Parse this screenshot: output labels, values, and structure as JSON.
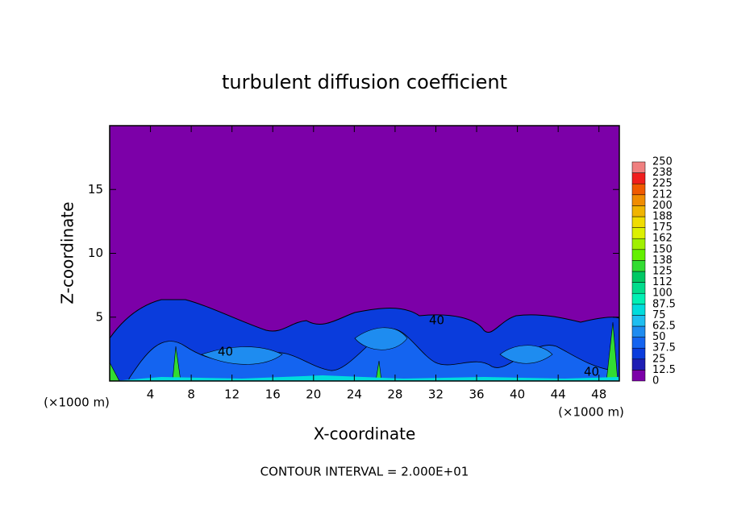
{
  "chart_data": {
    "type": "contour",
    "title": "turbulent diffusion coefficient",
    "x_label": "X-coordinate",
    "y_label": "Z-coordinate",
    "x_unit_label": "(×1000 m)",
    "xlim": [
      0,
      50
    ],
    "xticks": [
      4,
      8,
      12,
      16,
      20,
      24,
      28,
      32,
      36,
      40,
      44,
      48
    ],
    "ylim": [
      0,
      20
    ],
    "yticks": [
      5,
      10,
      15
    ],
    "colorbar": {
      "levels": [
        0,
        12.5,
        25,
        37.5,
        50,
        62.5,
        75,
        87.5,
        100,
        {
          "value": 112.5,
          "label": "112"
        },
        125,
        {
          "value": 137.5,
          "label": "138"
        },
        150,
        {
          "value": 162.5,
          "label": "162"
        },
        175,
        {
          "value": 187.5,
          "label": "188"
        },
        200,
        {
          "value": 212.5,
          "label": "212"
        },
        225,
        {
          "value": 237.5,
          "label": "238"
        },
        250
      ],
      "colors": [
        "#7c00a8",
        "#1e1eb4",
        "#0a3cdc",
        "#1464f0",
        "#1e8cf0",
        "#1ebef0",
        "#00dcdc",
        "#00f0b4",
        "#00dc8c",
        "#00c864",
        "#32dc32",
        "#64f000",
        "#a0f000",
        "#dcf000",
        "#f0dc00",
        "#f0b400",
        "#f08c00",
        "#f05a00",
        "#f01e1e",
        "#f08080"
      ]
    },
    "contour_labels": [
      "40",
      "40",
      "40"
    ],
    "footer": "CONTOUR INTERVAL = 2.000E+01"
  }
}
